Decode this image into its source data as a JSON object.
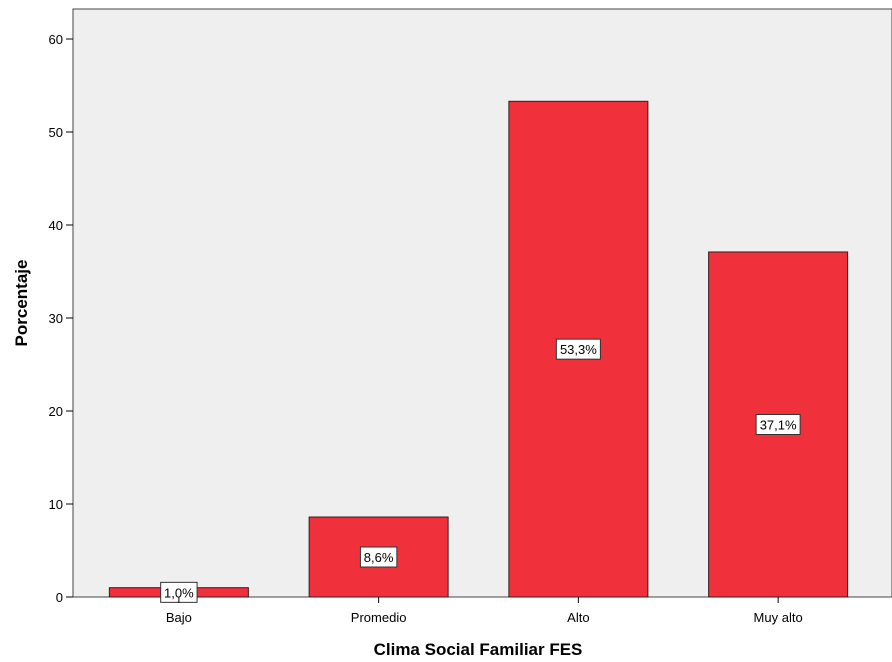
{
  "chart_data": {
    "type": "bar",
    "categories": [
      "Bajo",
      "Promedio",
      "Alto",
      "Muy alto"
    ],
    "values": [
      1.0,
      8.6,
      53.3,
      37.1
    ],
    "data_labels": [
      "1,0%",
      "8,6%",
      "53,3%",
      "37,1%"
    ],
    "title": "",
    "xlabel": "Clima Social Familiar FES",
    "ylabel": "Porcentaje",
    "ylim": [
      0,
      60
    ],
    "yticks": [
      0,
      10,
      20,
      30,
      40,
      50,
      60
    ],
    "ytick_labels": [
      "0",
      "10",
      "20",
      "30",
      "40",
      "50",
      "60"
    ],
    "grid": false,
    "legend": "none",
    "colors": {
      "bar_fill": "#f0303a",
      "bar_stroke": "#3a1a1a",
      "plot_background": "#efefef",
      "frame": "#444444"
    }
  }
}
